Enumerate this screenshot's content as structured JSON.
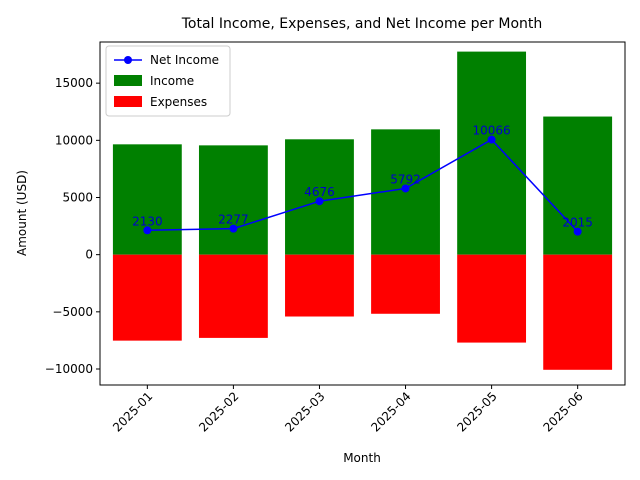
{
  "chart_data": {
    "type": "bar",
    "title": "Total Income, Expenses, and Net Income per Month",
    "xlabel": "Month",
    "ylabel": "Amount (USD)",
    "categories": [
      "2025-01",
      "2025-02",
      "2025-03",
      "2025-04",
      "2025-05",
      "2025-06"
    ],
    "ylim": [
      -11400,
      18600
    ],
    "yticks": [
      -10000,
      -5000,
      0,
      5000,
      10000,
      15000
    ],
    "ytick_labels": [
      "−10000",
      "−5000",
      "0",
      "5000",
      "10000",
      "15000"
    ],
    "grid": false,
    "legend_position": "upper-left",
    "series": [
      {
        "name": "Income",
        "kind": "bar",
        "color": "#008000",
        "values": [
          9650,
          9560,
          10090,
          10960,
          17760,
          12080
        ]
      },
      {
        "name": "Expenses",
        "kind": "bar",
        "color": "#ff0000",
        "values": [
          -7520,
          -7280,
          -5410,
          -5170,
          -7690,
          -10070
        ]
      },
      {
        "name": "Net Income",
        "kind": "line",
        "color": "#0000ff",
        "marker": "circle",
        "values": [
          2130,
          2277,
          4676,
          5792,
          10066,
          2015
        ]
      }
    ],
    "data_labels": [
      "2130",
      "2277",
      "4676",
      "5792",
      "10066",
      "2015"
    ]
  }
}
